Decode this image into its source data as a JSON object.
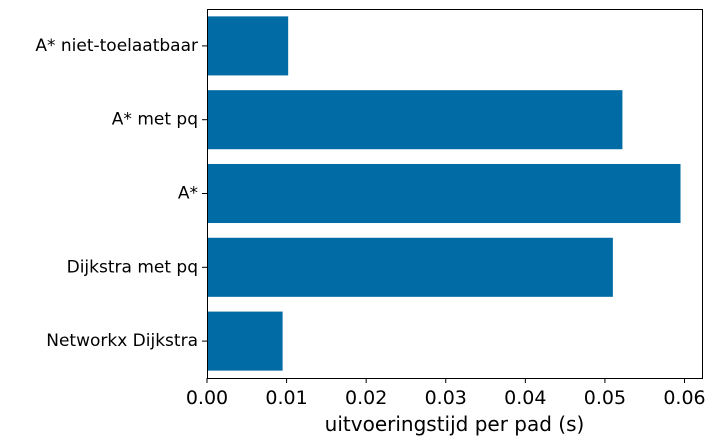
{
  "chart_data": {
    "type": "bar",
    "orientation": "horizontal",
    "categories": [
      "Networkx Dijkstra",
      "Dijkstra met pq",
      "A*",
      "A* met pq",
      "A* niet-toelaatbaar"
    ],
    "values": [
      0.0095,
      0.051,
      0.0595,
      0.0522,
      0.0102
    ],
    "xlabel": "uitvoeringstijd per pad (s)",
    "ylabel": "",
    "title": "",
    "xlim": [
      0,
      0.0622
    ],
    "xticks": [
      0.0,
      0.01,
      0.02,
      0.03,
      0.04,
      0.05,
      0.06
    ],
    "xtick_labels": [
      "0.00",
      "0.01",
      "0.02",
      "0.03",
      "0.04",
      "0.05",
      "0.06"
    ],
    "bar_color": "#006ba4",
    "grid": false,
    "legend": "none"
  }
}
